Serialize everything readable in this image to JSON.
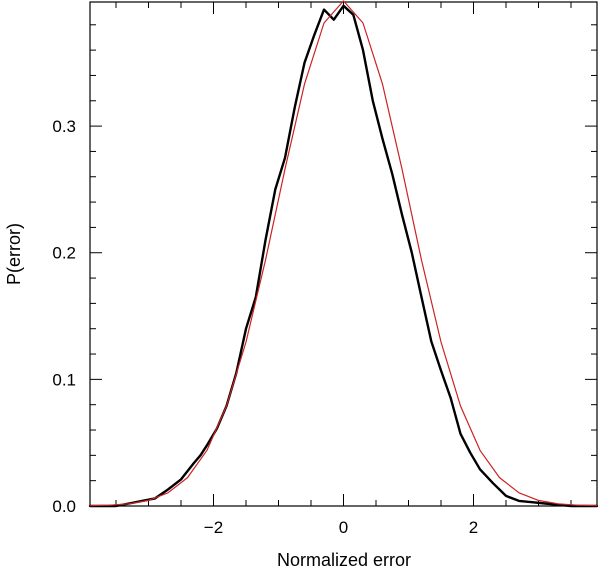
{
  "chart_data": {
    "type": "line",
    "title": "",
    "xlabel": "Normalized error",
    "ylabel": "P(error)",
    "xlim": [
      -3.9,
      3.9
    ],
    "ylim": [
      0.0,
      0.398
    ],
    "xticks": [
      -2,
      0,
      2
    ],
    "xtick_labels": [
      "−2",
      "0",
      "2"
    ],
    "yticks": [
      0.0,
      0.1,
      0.2,
      0.3
    ],
    "ytick_labels": [
      "0.0",
      "0.1",
      "0.2",
      "0.3"
    ],
    "grid": false,
    "legend": "none",
    "series": [
      {
        "color": "#000000",
        "style": "empirical",
        "x": [
          -3.9,
          -3.5,
          -3.3,
          -3.1,
          -2.9,
          -2.7,
          -2.5,
          -2.3,
          -2.2,
          -2.1,
          -1.95,
          -1.8,
          -1.65,
          -1.5,
          -1.35,
          -1.2,
          -1.05,
          -0.9,
          -0.75,
          -0.6,
          -0.45,
          -0.3,
          -0.15,
          0.0,
          0.15,
          0.3,
          0.45,
          0.6,
          0.75,
          0.9,
          1.05,
          1.2,
          1.35,
          1.5,
          1.65,
          1.8,
          1.95,
          2.1,
          2.3,
          2.5,
          2.7,
          2.9,
          3.1,
          3.3,
          3.5,
          3.9
        ],
        "y": [
          0.0,
          0.0,
          0.002,
          0.004,
          0.006,
          0.013,
          0.021,
          0.034,
          0.04,
          0.048,
          0.061,
          0.079,
          0.105,
          0.14,
          0.165,
          0.21,
          0.25,
          0.275,
          0.315,
          0.35,
          0.372,
          0.392,
          0.384,
          0.395,
          0.388,
          0.36,
          0.32,
          0.29,
          0.262,
          0.23,
          0.2,
          0.165,
          0.13,
          0.107,
          0.085,
          0.057,
          0.042,
          0.029,
          0.018,
          0.008,
          0.004,
          0.003,
          0.002,
          0.001,
          0.0,
          0.0
        ]
      },
      {
        "color": "#cc2222",
        "style": "gaussian",
        "mean": 0.0,
        "sigma": 1.0,
        "x": [
          -3.9,
          -3.6,
          -3.3,
          -3.0,
          -2.7,
          -2.4,
          -2.1,
          -1.8,
          -1.5,
          -1.2,
          -0.9,
          -0.6,
          -0.3,
          0.0,
          0.3,
          0.6,
          0.9,
          1.2,
          1.5,
          1.8,
          2.1,
          2.4,
          2.7,
          3.0,
          3.3,
          3.6,
          3.9
        ],
        "y": [
          0.0002,
          0.0006,
          0.0017,
          0.0044,
          0.0104,
          0.0224,
          0.044,
          0.079,
          0.1295,
          0.1942,
          0.2661,
          0.3332,
          0.3814,
          0.3989,
          0.3814,
          0.3332,
          0.2661,
          0.1942,
          0.1295,
          0.079,
          0.044,
          0.0224,
          0.0104,
          0.0044,
          0.0017,
          0.0006,
          0.0002
        ]
      }
    ]
  }
}
